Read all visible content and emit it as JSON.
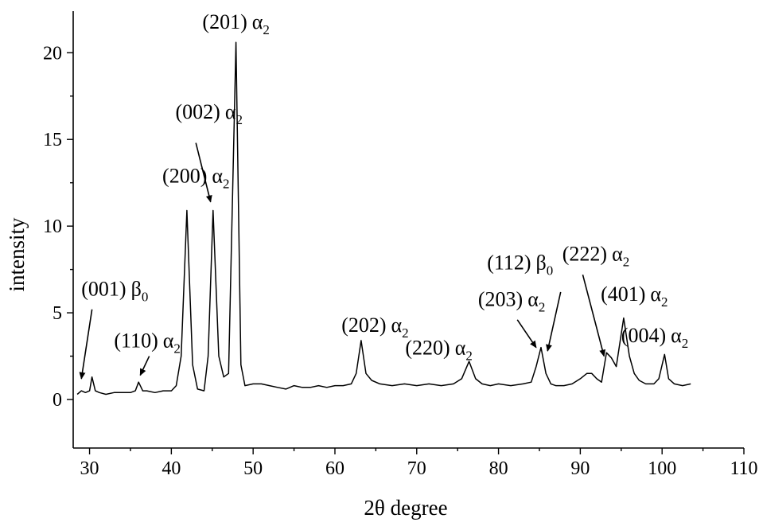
{
  "chart_data": {
    "type": "line",
    "xlabel": "2θ degree",
    "ylabel": "intensity",
    "xlim": [
      28,
      110
    ],
    "ylim": [
      -2.8,
      22.4
    ],
    "x_ticks": [
      30,
      40,
      50,
      60,
      70,
      80,
      90,
      100,
      110
    ],
    "y_ticks": [
      0,
      5,
      10,
      15,
      20
    ],
    "grid": false,
    "series": [
      {
        "x": [
          28.5,
          29.0,
          29.5,
          30.0,
          30.3,
          30.7,
          31.2,
          32.0,
          33.0,
          34.0,
          35.0,
          35.6,
          36.0,
          36.5,
          37.0,
          38.0,
          39.0,
          40.0,
          40.6,
          41.2,
          41.9,
          42.6,
          43.2,
          44.0,
          44.5,
          45.1,
          45.8,
          46.4,
          47.0,
          47.9,
          48.5,
          49.0,
          50.0,
          51.0,
          52.0,
          53.0,
          54.0,
          55.0,
          56.0,
          57.0,
          58.0,
          59.0,
          60.0,
          61.0,
          62.0,
          62.6,
          63.2,
          63.8,
          64.5,
          65.5,
          67.0,
          68.5,
          70.0,
          71.5,
          73.0,
          74.5,
          75.5,
          76.4,
          77.2,
          78.0,
          79.0,
          80.0,
          81.5,
          83.0,
          84.0,
          84.6,
          85.2,
          85.8,
          86.4,
          87.0,
          88.0,
          89.0,
          90.0,
          90.8,
          91.4,
          92.0,
          92.6,
          93.2,
          93.8,
          94.4,
          95.3,
          96.0,
          96.6,
          97.2,
          98.0,
          99.0,
          99.6,
          100.3,
          100.8,
          101.5,
          102.5,
          103.5
        ],
        "y": [
          0.3,
          0.5,
          0.4,
          0.5,
          1.3,
          0.5,
          0.4,
          0.3,
          0.4,
          0.4,
          0.4,
          0.5,
          1.0,
          0.5,
          0.5,
          0.4,
          0.5,
          0.5,
          0.8,
          2.5,
          10.9,
          2.0,
          0.6,
          0.5,
          2.5,
          10.9,
          2.5,
          1.3,
          1.5,
          20.6,
          2.0,
          0.8,
          0.9,
          0.9,
          0.8,
          0.7,
          0.6,
          0.8,
          0.7,
          0.7,
          0.8,
          0.7,
          0.8,
          0.8,
          0.9,
          1.5,
          3.4,
          1.5,
          1.1,
          0.9,
          0.8,
          0.9,
          0.8,
          0.9,
          0.8,
          0.9,
          1.2,
          2.2,
          1.2,
          0.9,
          0.8,
          0.9,
          0.8,
          0.9,
          1.0,
          1.9,
          3.0,
          1.5,
          0.9,
          0.8,
          0.8,
          0.9,
          1.2,
          1.5,
          1.5,
          1.2,
          1.0,
          2.7,
          2.4,
          1.9,
          4.7,
          2.5,
          1.5,
          1.1,
          0.9,
          0.9,
          1.2,
          2.6,
          1.2,
          0.9,
          0.8,
          0.9
        ]
      }
    ],
    "annotations": [
      {
        "id": "p001",
        "main": "(001)",
        "greek": "β",
        "sub": "0",
        "tx": 29.0,
        "ty": 6.0,
        "arrow": [
          [
            30.3,
            5.2
          ],
          [
            29.0,
            1.2
          ]
        ]
      },
      {
        "id": "p110",
        "main": "(110)",
        "greek": "α",
        "sub": "2",
        "tx": 33.0,
        "ty": 3.0,
        "arrow": [
          [
            37.3,
            2.5
          ],
          [
            36.2,
            1.4
          ]
        ]
      },
      {
        "id": "p200",
        "main": "(200)",
        "greek": "α",
        "sub": "2",
        "tx": 38.9,
        "ty": 12.5
      },
      {
        "id": "p002",
        "main": "(002)",
        "greek": "α",
        "sub": "2",
        "tx": 40.5,
        "ty": 16.2,
        "arrow": [
          [
            43.0,
            14.8
          ],
          [
            44.8,
            11.4
          ]
        ]
      },
      {
        "id": "p201",
        "main": "(201)",
        "greek": "α",
        "sub": "2",
        "tx": 43.8,
        "ty": 21.4
      },
      {
        "id": "p202",
        "main": "(202)",
        "greek": "α",
        "sub": "2",
        "tx": 60.8,
        "ty": 3.9
      },
      {
        "id": "p220",
        "main": "(220)",
        "greek": "α",
        "sub": "2",
        "tx": 68.6,
        "ty": 2.6
      },
      {
        "id": "p203",
        "main": "(203)",
        "greek": "α",
        "sub": "2",
        "tx": 77.5,
        "ty": 5.4,
        "arrow": [
          [
            82.3,
            4.6
          ],
          [
            84.6,
            3.0
          ]
        ]
      },
      {
        "id": "p112",
        "main": "(112)",
        "greek": "β",
        "sub": "0",
        "tx": 78.6,
        "ty": 7.5,
        "arrow": [
          [
            87.6,
            6.2
          ],
          [
            86.0,
            2.8
          ]
        ]
      },
      {
        "id": "p222",
        "main": "(222)",
        "greek": "α",
        "sub": "2",
        "tx": 87.8,
        "ty": 8.0,
        "arrow": [
          [
            90.3,
            7.2
          ],
          [
            92.9,
            2.5
          ]
        ]
      },
      {
        "id": "p401",
        "main": "(401)",
        "greek": "α",
        "sub": "2",
        "tx": 92.5,
        "ty": 5.7
      },
      {
        "id": "p004",
        "main": "(004)",
        "greek": "α",
        "sub": "2",
        "tx": 95.0,
        "ty": 3.3
      }
    ]
  }
}
